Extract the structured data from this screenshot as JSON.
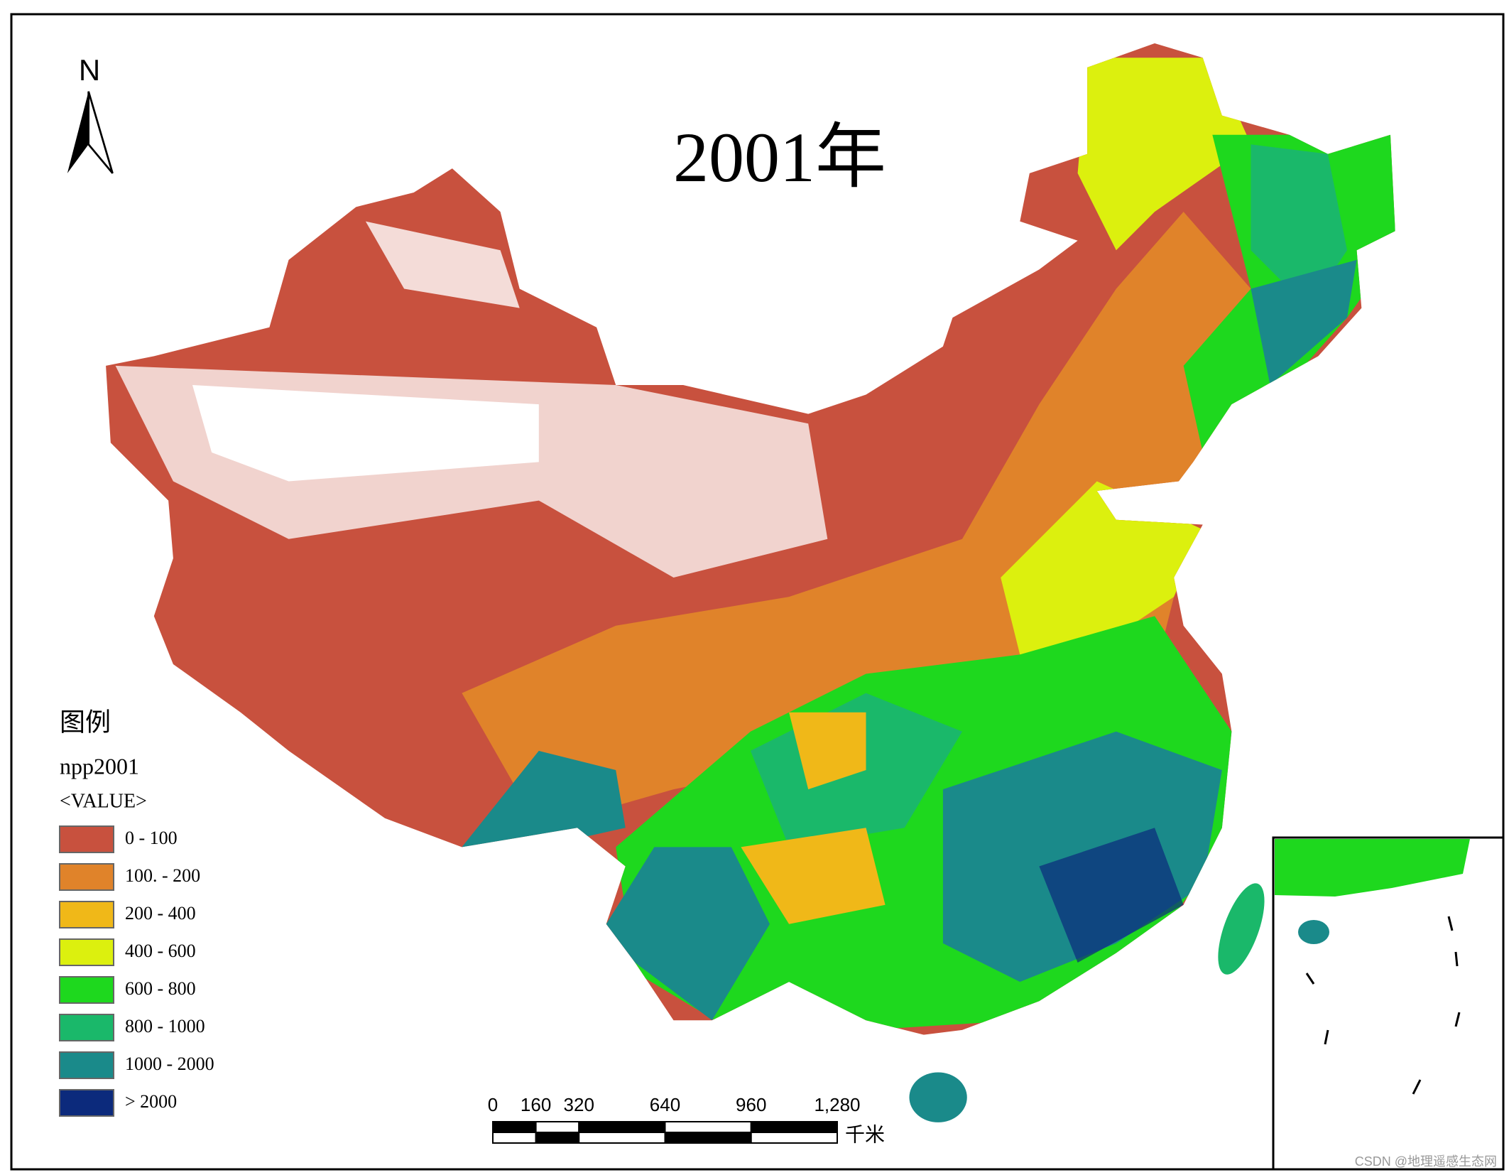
{
  "title": "2001年",
  "north_arrow": {
    "label": "N"
  },
  "legend": {
    "title": "图例",
    "layer": "npp2001",
    "field": "<VALUE>",
    "classes": [
      {
        "label": "0 - 100",
        "color": "#c8513e"
      },
      {
        "label": "100. - 200",
        "color": "#e0832a"
      },
      {
        "label": "200 - 400",
        "color": "#f0b818"
      },
      {
        "label": "400 - 600",
        "color": "#dcf00e"
      },
      {
        "label": "600 - 800",
        "color": "#1ed81e"
      },
      {
        "label": "800 - 1000",
        "color": "#1ab86a"
      },
      {
        "label": "1000 - 2000",
        "color": "#1a8a8a"
      },
      {
        "label": "> 2000",
        "color": "#0c2a7c"
      }
    ]
  },
  "scale_bar": {
    "ticks": [
      0,
      160,
      320,
      640,
      960,
      {
        "value": 1280,
        "label": "1,280"
      }
    ],
    "unit": "千米"
  },
  "watermark": "CSDN @地理遥感生态网"
}
